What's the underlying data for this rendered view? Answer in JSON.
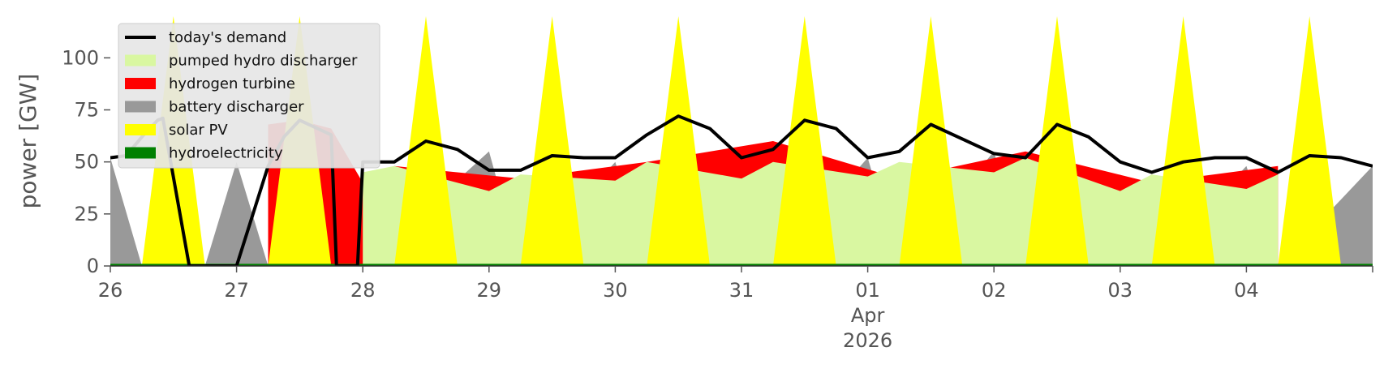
{
  "chart_data": {
    "type": "area",
    "ylabel": "power [GW]",
    "ylim": [
      0,
      120
    ],
    "xlim": [
      "2026-03-26 00:00",
      "2026-04-04 24:00"
    ],
    "y_ticks": [
      0,
      25,
      50,
      75,
      100
    ],
    "x_ticks": [
      {
        "date": "2026-03-26",
        "label": "26"
      },
      {
        "date": "2026-03-27",
        "label": "27"
      },
      {
        "date": "2026-03-28",
        "label": "28"
      },
      {
        "date": "2026-03-29",
        "label": "29"
      },
      {
        "date": "2026-03-30",
        "label": "30"
      },
      {
        "date": "2026-03-31",
        "label": "31"
      },
      {
        "date": "2026-04-01",
        "label": "01",
        "sublabel_month": "Apr",
        "sublabel_year": "2026"
      },
      {
        "date": "2026-04-02",
        "label": "02"
      },
      {
        "date": "2026-04-03",
        "label": "03"
      },
      {
        "date": "2026-04-04",
        "label": "04"
      }
    ],
    "grid": false,
    "legend_position": "top-left",
    "series": [
      {
        "name": "hydroelectricity",
        "color": "#008000",
        "kind": "stacked_area",
        "x": [
          "2026-03-26 00:00",
          "2026-03-30 12:00",
          "2026-04-04 24:00"
        ],
        "values": [
          1,
          1,
          1
        ]
      },
      {
        "name": "solar PV",
        "color": "#ffff00",
        "kind": "stacked_area",
        "x": [
          "2026-03-26 06:00",
          "2026-03-26 12:00",
          "2026-03-26 18:00",
          "2026-03-27 06:00",
          "2026-03-27 12:00",
          "2026-03-27 18:00",
          "2026-03-28 06:00",
          "2026-03-28 12:00",
          "2026-03-28 18:00",
          "2026-03-29 06:00",
          "2026-03-29 12:00",
          "2026-03-29 18:00",
          "2026-03-30 06:00",
          "2026-03-30 12:00",
          "2026-03-30 18:00",
          "2026-03-31 06:00",
          "2026-03-31 12:00",
          "2026-03-31 18:00",
          "2026-04-01 06:00",
          "2026-04-01 12:00",
          "2026-04-01 18:00",
          "2026-04-02 06:00",
          "2026-04-02 12:00",
          "2026-04-02 18:00",
          "2026-04-03 06:00",
          "2026-04-03 12:00",
          "2026-04-03 18:00",
          "2026-04-04 06:00",
          "2026-04-04 12:00",
          "2026-04-04 18:00"
        ],
        "values": [
          0,
          135,
          0,
          0,
          130,
          0,
          0,
          140,
          0,
          0,
          140,
          0,
          0,
          140,
          0,
          0,
          140,
          0,
          0,
          140,
          0,
          0,
          140,
          0,
          0,
          140,
          0,
          0,
          140,
          0
        ]
      },
      {
        "name": "battery discharger",
        "color": "#999999",
        "kind": "stacked_area",
        "x": [
          "2026-03-26 00:00",
          "2026-03-26 06:00",
          "2026-03-26 18:00",
          "2026-03-27 00:00",
          "2026-03-27 06:00",
          "2026-03-27 18:00",
          "2026-03-28 00:00",
          "2026-03-29 00:00",
          "2026-03-29 06:00",
          "2026-03-30 00:00",
          "2026-03-30 06:00",
          "2026-03-31 00:00",
          "2026-03-31 06:00",
          "2026-04-01 00:00",
          "2026-04-01 06:00",
          "2026-04-02 00:00",
          "2026-04-02 06:00",
          "2026-04-03 00:00",
          "2026-04-03 06:00",
          "2026-04-04 00:00",
          "2026-04-04 06:00",
          "2026-04-04 24:00"
        ],
        "values": [
          52,
          0,
          0,
          50,
          0,
          60,
          0,
          55,
          0,
          50,
          0,
          55,
          0,
          52,
          0,
          55,
          0,
          44,
          0,
          48,
          0,
          48
        ]
      },
      {
        "name": "hydrogen turbine",
        "color": "#ff0000",
        "kind": "stacked_area",
        "x": [
          "2026-03-27 06:00",
          "2026-03-27 12:00",
          "2026-03-27 18:00",
          "2026-03-28 00:00",
          "2026-03-28 06:00",
          "2026-03-29 06:00",
          "2026-03-30 06:00",
          "2026-03-31 06:00",
          "2026-04-01 06:00",
          "2026-04-02 06:00",
          "2026-04-03 06:00",
          "2026-04-04 06:00"
        ],
        "values": [
          68,
          70,
          66,
          40,
          48,
          42,
          50,
          60,
          42,
          55,
          40,
          48
        ]
      },
      {
        "name": "pumped hydro discharger",
        "color": "#d9f7a1",
        "kind": "stacked_area",
        "x": [
          "2026-03-28 00:00",
          "2026-03-28 06:00",
          "2026-03-29 00:00",
          "2026-03-29 06:00",
          "2026-03-30 00:00",
          "2026-03-30 06:00",
          "2026-03-31 00:00",
          "2026-03-31 06:00",
          "2026-04-01 00:00",
          "2026-04-01 06:00",
          "2026-04-02 00:00",
          "2026-04-02 06:00",
          "2026-04-03 00:00",
          "2026-04-03 06:00",
          "2026-04-04 00:00",
          "2026-04-04 06:00"
        ],
        "values": [
          45,
          48,
          36,
          44,
          41,
          50,
          42,
          50,
          43,
          50,
          45,
          52,
          36,
          44,
          37,
          44
        ]
      },
      {
        "name": "today's demand",
        "color": "#000000",
        "kind": "line",
        "x": [
          "2026-03-26 00:00",
          "2026-03-26 03:00",
          "2026-03-26 06:00",
          "2026-03-26 09:00",
          "2026-03-26 10:00",
          "2026-03-26 15:00",
          "2026-03-26 21:00",
          "2026-03-27 00:00",
          "2026-03-27 06:00",
          "2026-03-27 09:00",
          "2026-03-27 12:00",
          "2026-03-27 18:00",
          "2026-03-27 19:00",
          "2026-03-27 23:00",
          "2026-03-28 00:00",
          "2026-03-28 06:00",
          "2026-03-28 12:00",
          "2026-03-28 18:00",
          "2026-03-29 00:00",
          "2026-03-29 06:00",
          "2026-03-29 12:00",
          "2026-03-29 18:00",
          "2026-03-30 00:00",
          "2026-03-30 06:00",
          "2026-03-30 12:00",
          "2026-03-30 18:00",
          "2026-03-31 00:00",
          "2026-03-31 06:00",
          "2026-03-31 12:00",
          "2026-03-31 18:00",
          "2026-04-01 00:00",
          "2026-04-01 06:00",
          "2026-04-01 12:00",
          "2026-04-01 18:00",
          "2026-04-02 00:00",
          "2026-04-02 06:00",
          "2026-04-02 12:00",
          "2026-04-02 18:00",
          "2026-04-03 00:00",
          "2026-04-03 06:00",
          "2026-04-03 12:00",
          "2026-04-03 18:00",
          "2026-04-04 00:00",
          "2026-04-04 06:00",
          "2026-04-04 12:00",
          "2026-04-04 18:00",
          "2026-04-04 24:00"
        ],
        "values": [
          52,
          53,
          62,
          70,
          71,
          0,
          0,
          0,
          48,
          62,
          70,
          63,
          0,
          0,
          50,
          50,
          60,
          56,
          46,
          46,
          53,
          52,
          52,
          63,
          72,
          66,
          52,
          56,
          70,
          66,
          52,
          55,
          68,
          61,
          54,
          52,
          68,
          62,
          50,
          45,
          50,
          52,
          52,
          45,
          53,
          52,
          48
        ]
      }
    ]
  }
}
